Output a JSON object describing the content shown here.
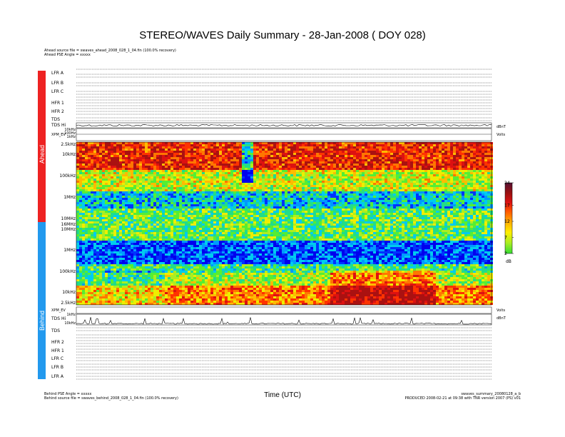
{
  "title": "STEREO/WAVES Daily Summary - 28-Jan-2008 ( DOY 028)",
  "header_left": [
    "Ahead source file = swaves_ahead_2008_028_1_04.fin (100.0% recovery)",
    "Ahead PSE Angle = xxxxx"
  ],
  "footer_left": [
    "Behind PSE Angle = xxxxx",
    "Behind source file = swaves_behind_2008_028_1_04.fin (100.0% recovery)"
  ],
  "footer_right": [
    "swaves_summary_20080128_a_b",
    "PRODUCED 2008-02-21 at 09:38 with TNR version 2007 (PS) v01"
  ],
  "xlabel": "Time (UTC)",
  "sidebar": {
    "ahead": "Ahead",
    "behind": "Behind",
    "ahead_color": "#ee2222",
    "behind_color": "#2299ee"
  },
  "ahead_panels": [
    "LFR A",
    "LFR B",
    "LFR C",
    "HFR 1",
    "HFR 2",
    "TDS",
    "TDS Hi"
  ],
  "ahead_small_labels": [
    "10kHz",
    "100Hz",
    "1kHz",
    "XPM_EV"
  ],
  "behind_panels": [
    "TDS",
    "HFR 2",
    "HFR 1",
    "LFR C",
    "LFR B",
    "LFR A"
  ],
  "behind_small_labels": [
    "XPM_EV",
    "1kHz",
    "TDS Hi",
    "10kHz"
  ],
  "freq_labels_ahead": [
    "2.5kHz",
    "10kHz",
    "100kHz",
    "1MHz",
    "10MHz",
    "16MHz"
  ],
  "freq_labels_behind": [
    "10MHz",
    "1MHz",
    "100kHz",
    "10kHz",
    "2.5kHz"
  ],
  "right_panel_labels": [
    "Volts",
    "dBnT",
    "Volts",
    "dBnT"
  ],
  "colorbar": {
    "ticks": [
      "24",
      "17",
      "12",
      "7",
      "2"
    ],
    "unit": "dB",
    "min": 2,
    "max": 24,
    "colors": [
      "#33dd33",
      "#aaee22",
      "#ffee00",
      "#ffaa00",
      "#ff5500",
      "#dd1111",
      "#991111",
      "#551133"
    ]
  },
  "chart_data": {
    "type": "heatmap",
    "title": "STEREO/WAVES Daily Summary - 28-Jan-2008 ( DOY 028)",
    "xlabel": "Time (UTC)",
    "ylabel": "",
    "x_range": [
      "00:00",
      "24:00"
    ],
    "panels": [
      {
        "name": "Ahead",
        "freq_range_hz": [
          2500,
          16000000
        ],
        "scale": "log"
      },
      {
        "name": "Behind",
        "freq_range_hz": [
          2500,
          16000000
        ],
        "scale": "log"
      }
    ],
    "colorbar": {
      "ticks": [
        24,
        17,
        12,
        7,
        2
      ],
      "unit": "dB",
      "range": [
        2,
        24
      ]
    },
    "grid": false
  }
}
